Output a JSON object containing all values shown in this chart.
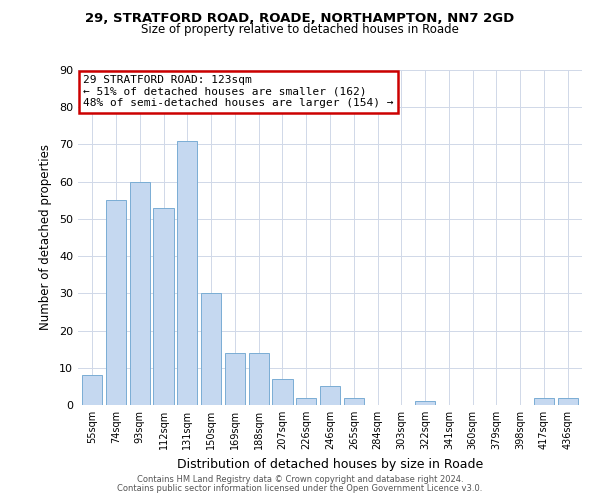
{
  "title_line1": "29, STRATFORD ROAD, ROADE, NORTHAMPTON, NN7 2GD",
  "title_line2": "Size of property relative to detached houses in Roade",
  "xlabel": "Distribution of detached houses by size in Roade",
  "ylabel": "Number of detached properties",
  "bar_labels": [
    "55sqm",
    "74sqm",
    "93sqm",
    "112sqm",
    "131sqm",
    "150sqm",
    "169sqm",
    "188sqm",
    "207sqm",
    "226sqm",
    "246sqm",
    "265sqm",
    "284sqm",
    "303sqm",
    "322sqm",
    "341sqm",
    "360sqm",
    "379sqm",
    "398sqm",
    "417sqm",
    "436sqm"
  ],
  "bar_heights": [
    8,
    55,
    60,
    53,
    71,
    30,
    14,
    14,
    7,
    2,
    5,
    2,
    0,
    0,
    1,
    0,
    0,
    0,
    0,
    2,
    2
  ],
  "bar_color": "#c5d8f0",
  "bar_edge_color": "#7aadd4",
  "ylim": [
    0,
    90
  ],
  "yticks": [
    0,
    10,
    20,
    30,
    40,
    50,
    60,
    70,
    80,
    90
  ],
  "annotation_box_text": "29 STRATFORD ROAD: 123sqm\n← 51% of detached houses are smaller (162)\n48% of semi-detached houses are larger (154) →",
  "annotation_box_color": "#ffffff",
  "annotation_box_edge_color": "#cc0000",
  "footer_line1": "Contains HM Land Registry data © Crown copyright and database right 2024.",
  "footer_line2": "Contains public sector information licensed under the Open Government Licence v3.0.",
  "background_color": "#ffffff",
  "grid_color": "#d0d8e8"
}
